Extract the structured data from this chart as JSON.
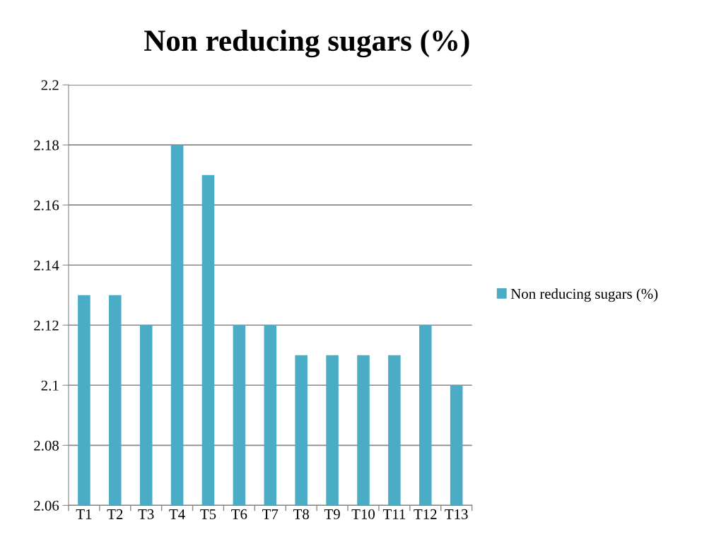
{
  "chart_data": {
    "type": "bar",
    "title": "Non reducing sugars (%)",
    "categories": [
      "T1",
      "T2",
      "T3",
      "T4",
      "T5",
      "T6",
      "T7",
      "T8",
      "T9",
      "T10",
      "T11",
      "T12",
      "T13"
    ],
    "series": [
      {
        "name": "Non reducing sugars (%)",
        "color": "#4bacc6",
        "values": [
          2.13,
          2.13,
          2.12,
          2.18,
          2.17,
          2.12,
          2.12,
          2.11,
          2.11,
          2.11,
          2.11,
          2.12,
          2.1
        ]
      }
    ],
    "ylim": [
      2.06,
      2.2
    ],
    "yticks": [
      2.06,
      2.08,
      {
        "value": 2.1,
        "label": "2.1"
      },
      2.12,
      2.14,
      2.16,
      2.18,
      {
        "value": 2.2,
        "label": "2.2"
      }
    ],
    "grid": "y",
    "legend": "right"
  }
}
